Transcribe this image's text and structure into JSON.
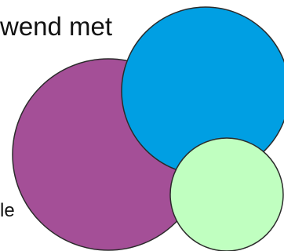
{
  "texts": {
    "top_fragment": "wend met",
    "side_fragment": "le"
  },
  "colors": {
    "purple": "#a44f97",
    "blue": "#009fe3",
    "mint": "#c0ffc0",
    "outline": "#2b2b2b",
    "text": "#111111"
  }
}
